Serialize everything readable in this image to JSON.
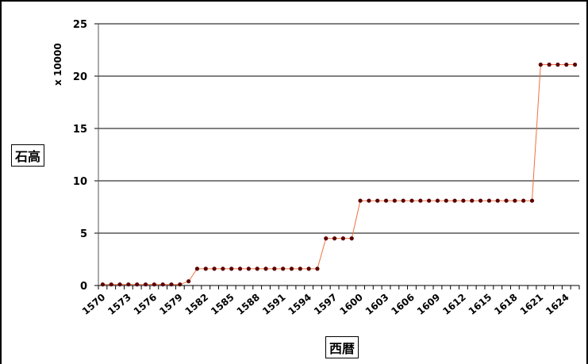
{
  "chart_data": {
    "type": "line",
    "ylabel": "石高",
    "xlabel": "西暦",
    "y_multiplier_label": "x 10000",
    "ylim": [
      0,
      25
    ],
    "y_ticks": [
      0,
      5,
      10,
      15,
      20,
      25
    ],
    "x_tick_labels": [
      1570,
      1573,
      1576,
      1579,
      1582,
      1585,
      1588,
      1591,
      1594,
      1597,
      1600,
      1603,
      1606,
      1609,
      1612,
      1615,
      1618,
      1621,
      1624
    ],
    "grid": true,
    "legend": "none",
    "series": [
      {
        "x": [
          1570,
          1571,
          1572,
          1573,
          1574,
          1575,
          1576,
          1577,
          1578,
          1579,
          1580,
          1581,
          1582,
          1583,
          1584,
          1585,
          1586,
          1587,
          1588,
          1589,
          1590,
          1591,
          1592,
          1593,
          1594,
          1595,
          1596,
          1597,
          1598,
          1599,
          1600,
          1601,
          1602,
          1603,
          1604,
          1605,
          1606,
          1607,
          1608,
          1609,
          1610,
          1611,
          1612,
          1613,
          1614,
          1615,
          1616,
          1617,
          1618,
          1619,
          1620,
          1621,
          1622,
          1623,
          1624,
          1625
        ],
        "values": [
          0.1,
          0.1,
          0.1,
          0.1,
          0.1,
          0.1,
          0.1,
          0.1,
          0.1,
          0.1,
          0.4,
          1.6,
          1.6,
          1.6,
          1.6,
          1.6,
          1.6,
          1.6,
          1.6,
          1.6,
          1.6,
          1.6,
          1.6,
          1.6,
          1.6,
          1.6,
          4.5,
          4.5,
          4.5,
          4.5,
          8.1,
          8.1,
          8.1,
          8.1,
          8.1,
          8.1,
          8.1,
          8.1,
          8.1,
          8.1,
          8.1,
          8.1,
          8.1,
          8.1,
          8.1,
          8.1,
          8.1,
          8.1,
          8.1,
          8.1,
          8.1,
          21.1,
          21.1,
          21.1,
          21.1,
          21.1
        ]
      }
    ],
    "colors": {
      "line": "#f07040",
      "marker": "#5a0000",
      "grid": "#000000"
    }
  }
}
